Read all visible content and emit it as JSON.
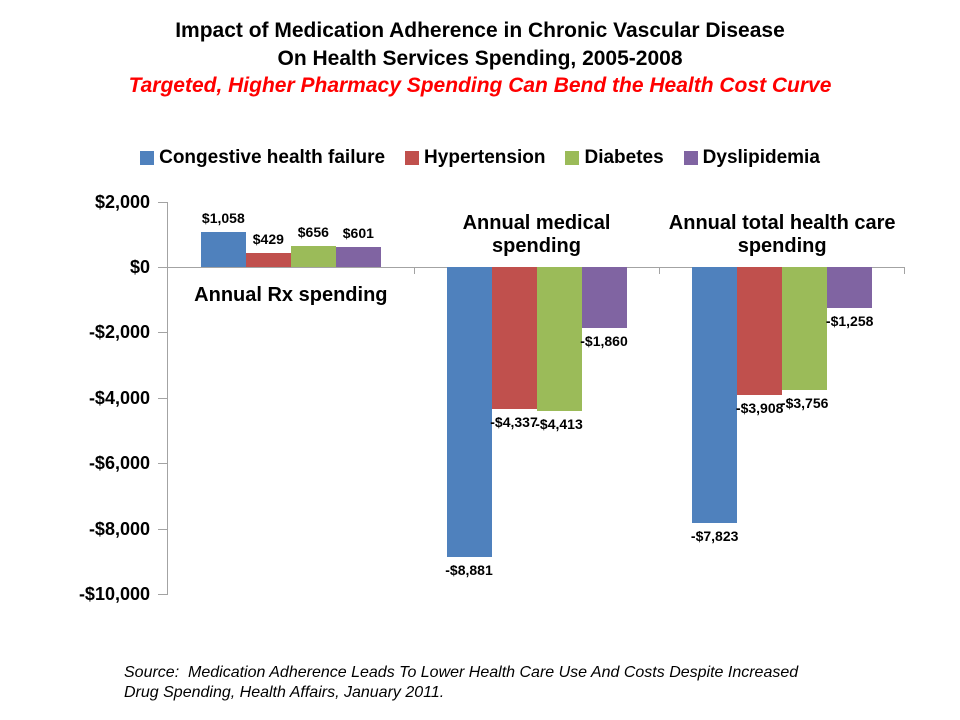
{
  "slide": {
    "title_line1": "Impact of Medication Adherence in Chronic Vascular Disease",
    "title_line2": "On Health Services Spending, 2005-2008",
    "subtitle": "Targeted, Higher Pharmacy Spending Can Bend the Health Cost Curve",
    "source_line1": "Source:  Medication Adherence Leads To Lower Health Care Use And Costs Despite Increased",
    "source_line2": "Drug Spending, Health Affairs, January 2011."
  },
  "colors": {
    "background": "#FFFFFF",
    "title_text": "#000000",
    "subtitle_text": "#FF0000",
    "axis_line": "#A3A3A3",
    "label_text": "#000000"
  },
  "chart_data": {
    "type": "bar",
    "title": "Impact of Medication Adherence in Chronic Vascular Disease On Health Services Spending, 2005-2008",
    "subtitle": "Targeted, Higher Pharmacy Spending Can Bend the Health Cost Curve",
    "categories": [
      "Annual Rx spending",
      "Annual medical spending",
      "Annual total health care spending"
    ],
    "series": [
      {
        "name": "Congestive health failure",
        "color": "#4F81BD",
        "values": [
          1058,
          -8881,
          -7823
        ],
        "labels": [
          "$1,058",
          "-$8,881",
          "-$7,823"
        ]
      },
      {
        "name": "Hypertension",
        "color": "#C0504D",
        "values": [
          429,
          -4337,
          -3908
        ],
        "labels": [
          "$429",
          "-$4,337",
          "-$3,908"
        ]
      },
      {
        "name": "Diabetes",
        "color": "#9BBB59",
        "values": [
          656,
          -4413,
          -3756
        ],
        "labels": [
          "$656",
          "-$4,413",
          "-$3,756"
        ]
      },
      {
        "name": "Dyslipidemia",
        "color": "#8064A2",
        "values": [
          601,
          -1860,
          -1258
        ],
        "labels": [
          "$601",
          "-$1,860",
          "-$1,258"
        ]
      }
    ],
    "y_axis": {
      "min": -10000,
      "max": 2000,
      "tick_step": 2000,
      "ticks": [
        {
          "value": 2000,
          "label": "$2,000"
        },
        {
          "value": 0,
          "label": "$0"
        },
        {
          "value": -2000,
          "label": "-$2,000"
        },
        {
          "value": -4000,
          "label": "-$4,000"
        },
        {
          "value": -6000,
          "label": "-$6,000"
        },
        {
          "value": -8000,
          "label": "-$8,000"
        },
        {
          "value": -10000,
          "label": "-$10,000"
        }
      ]
    },
    "legend_position": "top",
    "grid": false,
    "data_labels": "outside-end"
  }
}
